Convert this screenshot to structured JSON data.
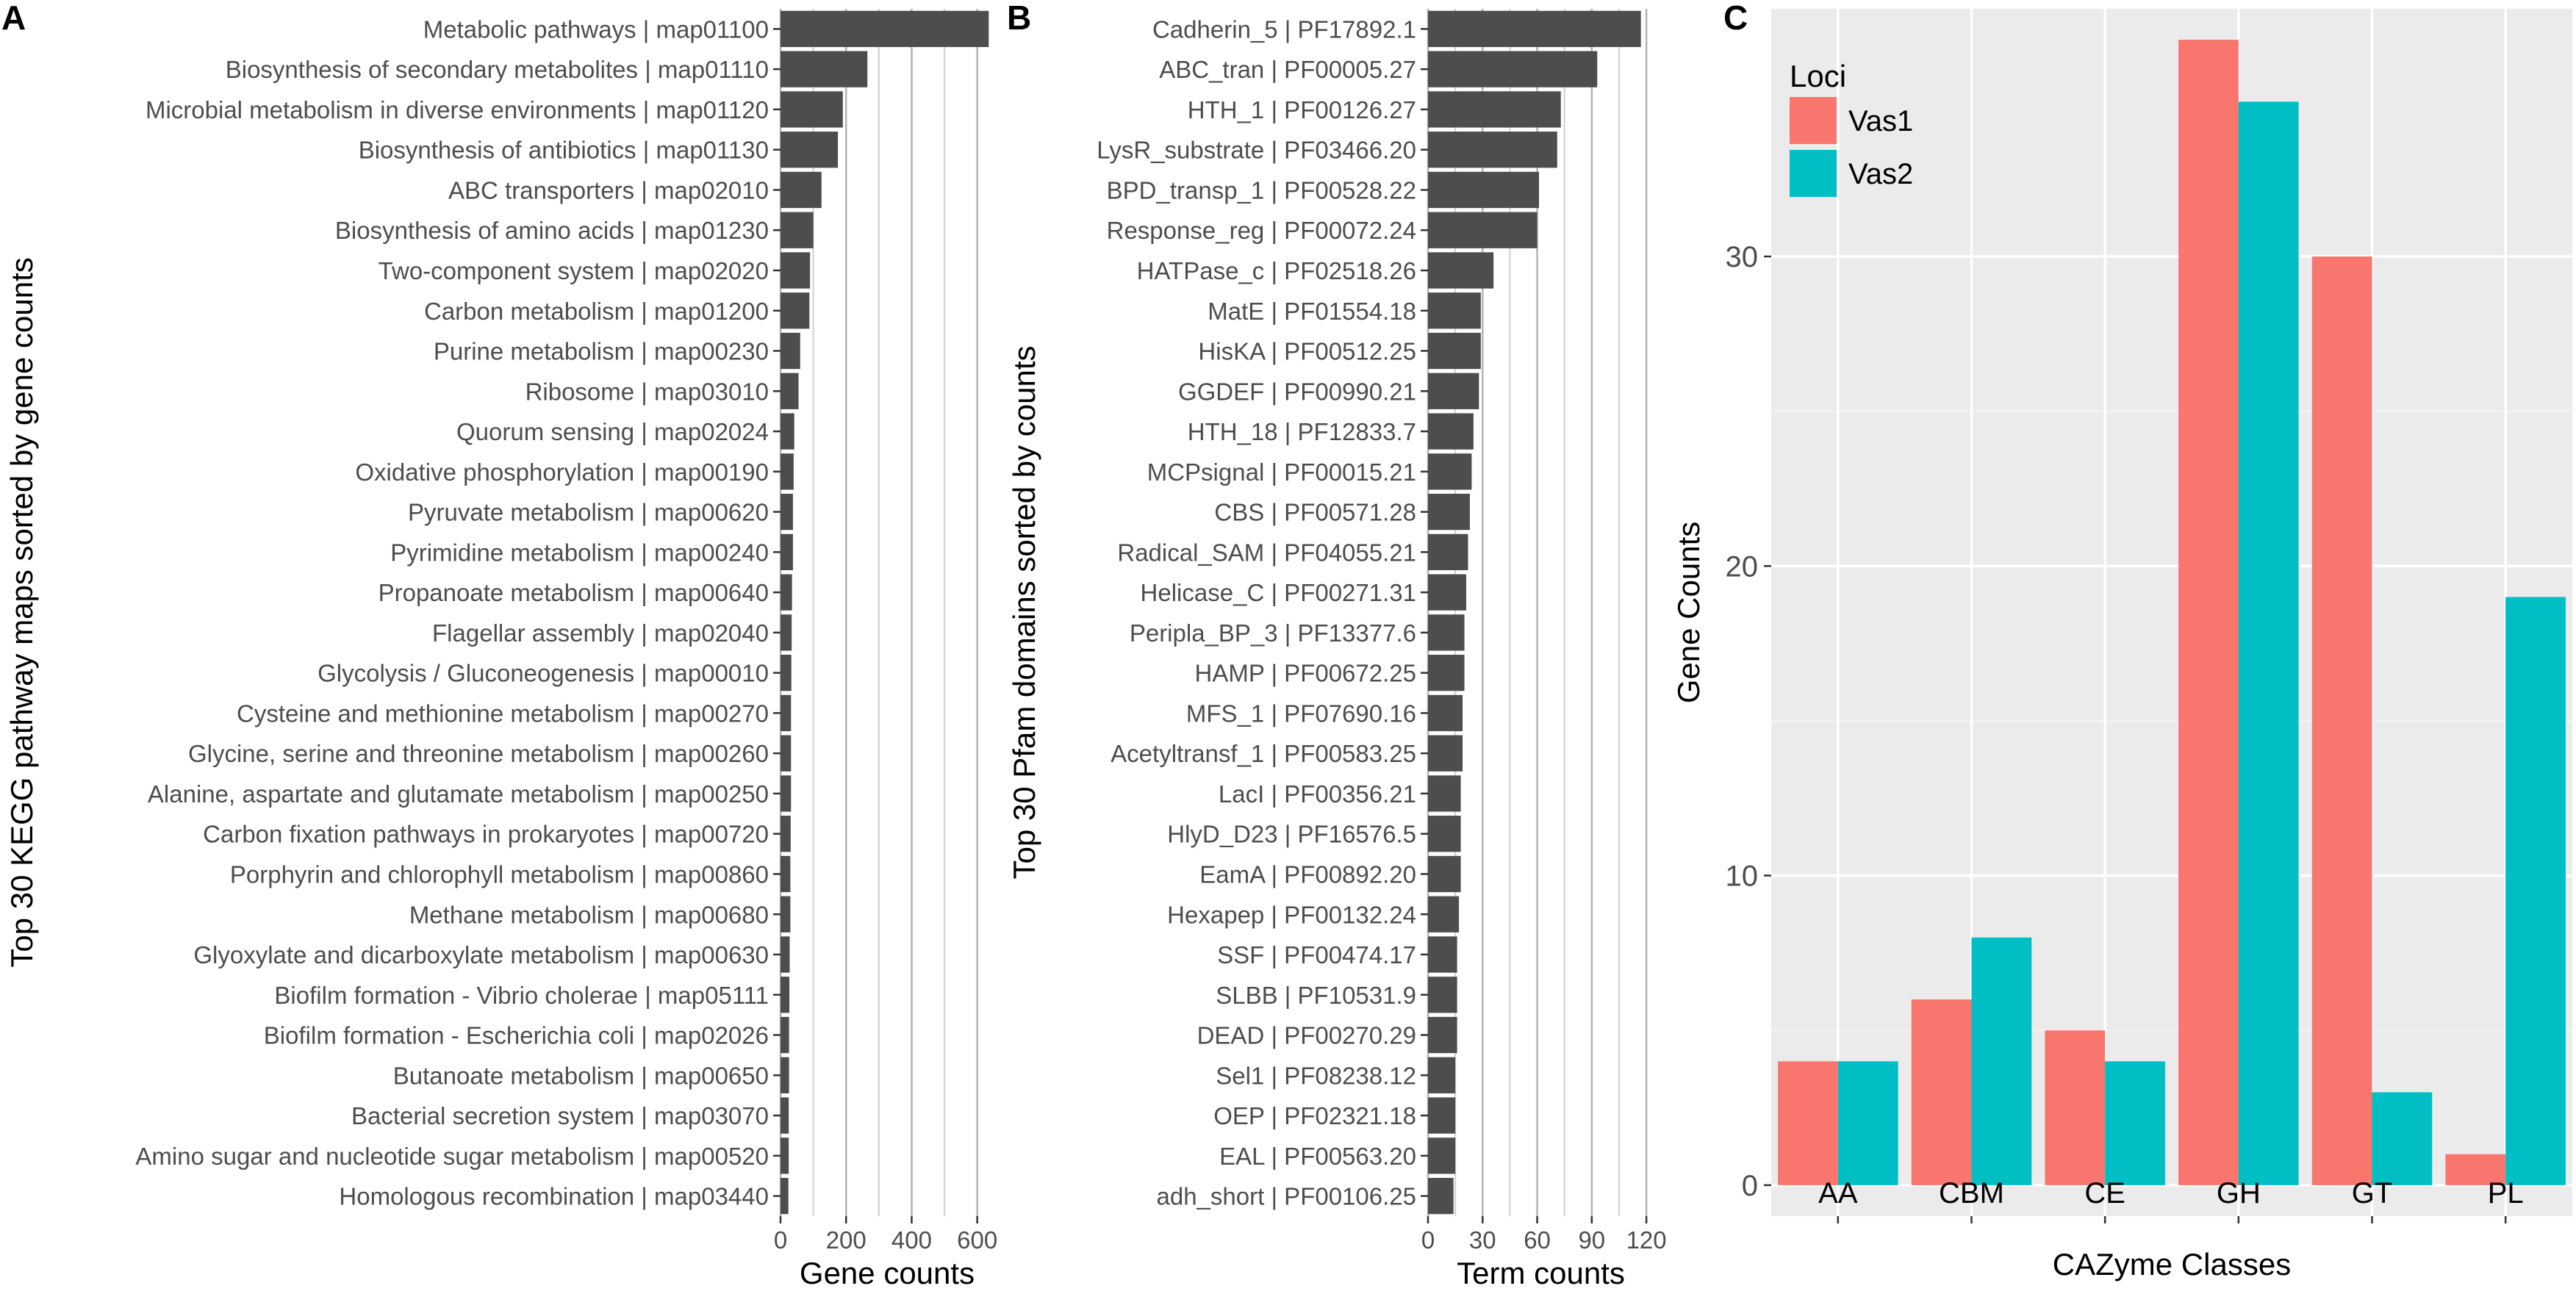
{
  "panels": {
    "A": "A",
    "B": "B",
    "C": "C"
  },
  "chart_data": [
    {
      "panel": "A",
      "type": "bar",
      "orientation": "horizontal",
      "title": "",
      "xlabel": "Gene counts",
      "ylabel": "Top 30 KEGG pathway maps sorted by gene counts",
      "xlim": [
        0,
        650
      ],
      "xticks": [
        0,
        200,
        400,
        600
      ],
      "grid": true,
      "bar_color": "#4d4d4d",
      "categories": [
        "Metabolic pathways | map01100",
        "Biosynthesis of secondary metabolites | map01110",
        "Microbial metabolism in diverse environments | map01120",
        "Biosynthesis of antibiotics | map01130",
        "ABC transporters | map02010",
        "Biosynthesis of amino acids | map01230",
        "Two-component system | map02020",
        "Carbon metabolism | map01200",
        "Purine metabolism | map00230",
        "Ribosome | map03010",
        "Quorum sensing | map02024",
        "Oxidative phosphorylation | map00190",
        "Pyruvate metabolism | map00620",
        "Pyrimidine metabolism | map00240",
        "Propanoate metabolism | map00640",
        "Flagellar assembly | map02040",
        "Glycolysis / Gluconeogenesis | map00010",
        "Cysteine and methionine metabolism | map00270",
        "Glycine, serine and threonine metabolism | map00260",
        "Alanine, aspartate and glutamate metabolism | map00250",
        "Carbon fixation pathways in prokaryotes | map00720",
        "Porphyrin and chlorophyll metabolism | map00860",
        "Methane metabolism | map00680",
        "Glyoxylate and dicarboxylate metabolism | map00630",
        "Biofilm formation - Vibrio cholerae | map05111",
        "Biofilm formation - Escherichia coli | map02026",
        "Butanoate metabolism | map00650",
        "Bacterial secretion system | map03070",
        "Amino sugar and nucleotide sugar metabolism | map00520",
        "Homologous recombination | map03440"
      ],
      "values": [
        635,
        265,
        190,
        175,
        125,
        100,
        90,
        88,
        60,
        55,
        42,
        40,
        38,
        38,
        35,
        34,
        33,
        32,
        32,
        32,
        31,
        30,
        30,
        28,
        27,
        26,
        26,
        25,
        25,
        24
      ]
    },
    {
      "panel": "B",
      "type": "bar",
      "orientation": "horizontal",
      "title": "",
      "xlabel": "Term counts",
      "ylabel": "Top 30 Pfam domains sorted by counts",
      "xlim": [
        0,
        124
      ],
      "xticks": [
        0,
        30,
        60,
        90,
        120
      ],
      "grid": true,
      "bar_color": "#4d4d4d",
      "categories": [
        "Cadherin_5 | PF17892.1",
        "ABC_tran | PF00005.27",
        "HTH_1 | PF00126.27",
        "LysR_substrate | PF03466.20",
        "BPD_transp_1 | PF00528.22",
        "Response_reg | PF00072.24",
        "HATPase_c | PF02518.26",
        "MatE | PF01554.18",
        "HisKA | PF00512.25",
        "GGDEF | PF00990.21",
        "HTH_18 | PF12833.7",
        "MCPsignal | PF00015.21",
        "CBS | PF00571.28",
        "Radical_SAM | PF04055.21",
        "Helicase_C | PF00271.31",
        "Peripla_BP_3 | PF13377.6",
        "HAMP | PF00672.25",
        "MFS_1 | PF07690.16",
        "Acetyltransf_1 | PF00583.25",
        "LacI | PF00356.21",
        "HlyD_D23 | PF16576.5",
        "EamA | PF00892.20",
        "Hexapep | PF00132.24",
        "SSF | PF00474.17",
        "SLBB | PF10531.9",
        "DEAD | PF00270.29",
        "Sel1 | PF08238.12",
        "OEP | PF02321.18",
        "EAL | PF00563.20",
        "adh_short | PF00106.25"
      ],
      "values": [
        117,
        93,
        73,
        71,
        61,
        60,
        36,
        29,
        29,
        28,
        25,
        24,
        23,
        22,
        21,
        20,
        20,
        19,
        19,
        18,
        18,
        18,
        17,
        16,
        16,
        16,
        15,
        15,
        15,
        14
      ]
    },
    {
      "panel": "C",
      "type": "bar",
      "orientation": "vertical",
      "title": "",
      "xlabel": "CAZyme Classes",
      "ylabel": "Gene Counts",
      "ylim": [
        -1,
        38
      ],
      "yticks": [
        0,
        10,
        20,
        30
      ],
      "grid": true,
      "legend_title": "Loci",
      "legend_position": "top-left",
      "categories": [
        "AA",
        "CBM",
        "CE",
        "GH",
        "GT",
        "PL"
      ],
      "series": [
        {
          "name": "Vas1",
          "color": "#f8766d",
          "values": [
            4,
            6,
            5,
            37,
            30,
            1
          ]
        },
        {
          "name": "Vas2",
          "color": "#00bfc4",
          "values": [
            4,
            8,
            4,
            35,
            3,
            19
          ]
        }
      ]
    }
  ]
}
